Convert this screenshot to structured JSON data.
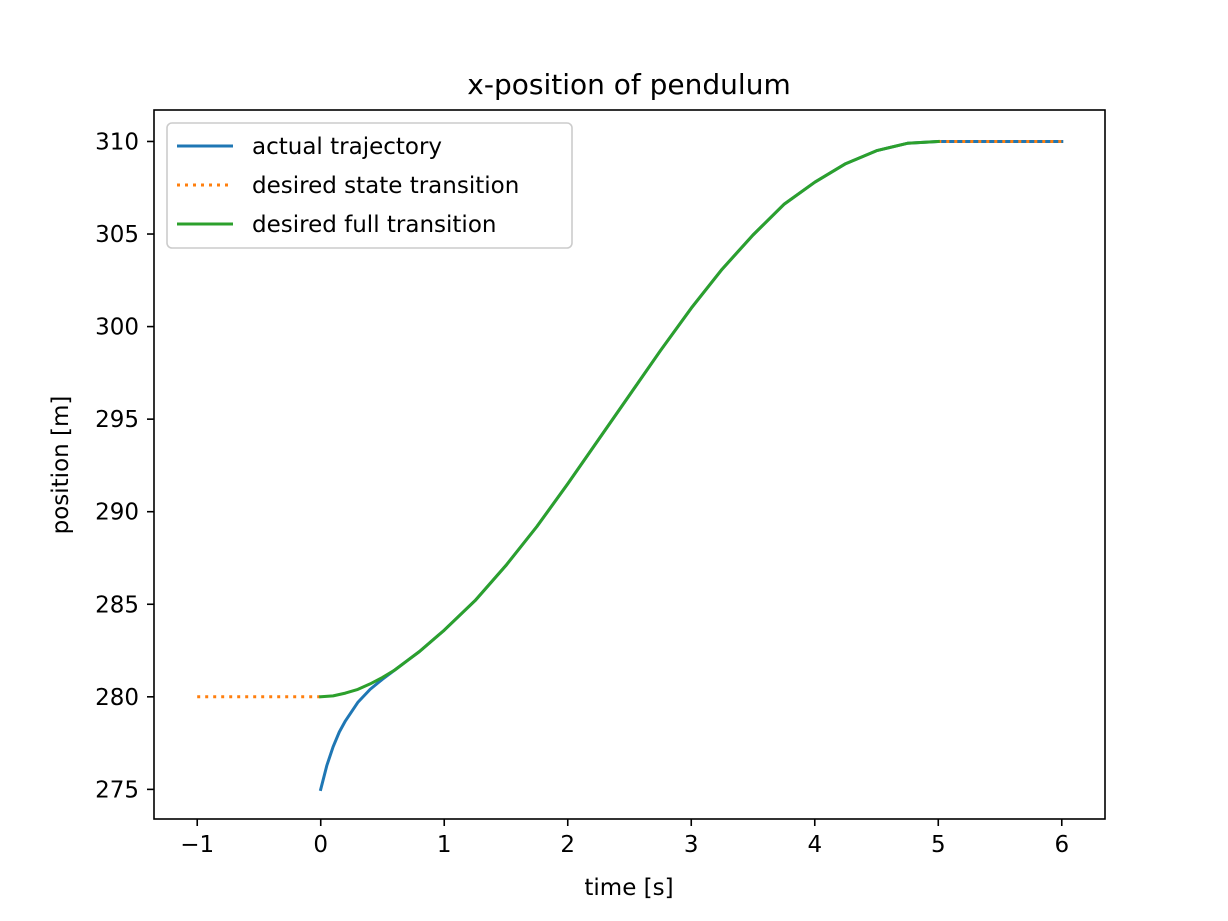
{
  "chart_data": {
    "type": "line",
    "title": "x-position of pendulum",
    "xlabel": "time [s]",
    "ylabel": "position [m]",
    "xlim": [
      -1.35,
      6.35
    ],
    "ylim": [
      273.4,
      311.7
    ],
    "xticks": [
      {
        "value": -1,
        "label": "−1"
      },
      {
        "value": 0,
        "label": "0"
      },
      {
        "value": 1,
        "label": "1"
      },
      {
        "value": 2,
        "label": "2"
      },
      {
        "value": 3,
        "label": "3"
      },
      {
        "value": 4,
        "label": "4"
      },
      {
        "value": 5,
        "label": "5"
      },
      {
        "value": 6,
        "label": "6"
      }
    ],
    "yticks": [
      {
        "value": 275,
        "label": "275"
      },
      {
        "value": 280,
        "label": "280"
      },
      {
        "value": 285,
        "label": "285"
      },
      {
        "value": 290,
        "label": "290"
      },
      {
        "value": 295,
        "label": "295"
      },
      {
        "value": 300,
        "label": "300"
      },
      {
        "value": 305,
        "label": "305"
      },
      {
        "value": 310,
        "label": "310"
      }
    ],
    "grid": false,
    "legend_position": "upper-left",
    "series": [
      {
        "name": "actual trajectory",
        "color": "#1f77b4",
        "style": "solid",
        "x": [
          0,
          0.05,
          0.1,
          0.15,
          0.2,
          0.3,
          0.4,
          0.5,
          0.6,
          0.7,
          0.8,
          1.0,
          1.25,
          1.5,
          1.75,
          2.0,
          2.25,
          2.5,
          2.75,
          3.0,
          3.25,
          3.5,
          3.75,
          4.0,
          4.25,
          4.5,
          4.75,
          5.0,
          5.5,
          6.0
        ],
        "y": [
          275.0,
          276.3,
          277.3,
          278.1,
          278.7,
          279.7,
          280.4,
          280.95,
          281.45,
          281.95,
          282.45,
          283.6,
          285.2,
          287.1,
          289.2,
          291.5,
          293.9,
          296.3,
          298.7,
          301.0,
          303.1,
          304.95,
          306.6,
          307.8,
          308.8,
          309.5,
          309.9,
          310.0,
          310.0,
          310.0
        ]
      },
      {
        "name": "desired state transition",
        "color": "#ff7f0e",
        "style": "dotted",
        "segments": [
          {
            "x": [
              -1,
              0
            ],
            "y": [
              280,
              280
            ]
          },
          {
            "x": [
              5,
              6
            ],
            "y": [
              310,
              310
            ]
          }
        ]
      },
      {
        "name": "desired full transition",
        "color": "#2ca02c",
        "style": "solid",
        "x": [
          0,
          0.1,
          0.2,
          0.3,
          0.4,
          0.5,
          0.6,
          0.7,
          0.8,
          1.0,
          1.25,
          1.5,
          1.75,
          2.0,
          2.25,
          2.5,
          2.75,
          3.0,
          3.25,
          3.5,
          3.75,
          4.0,
          4.25,
          4.5,
          4.75,
          5.0
        ],
        "y": [
          280.0,
          280.05,
          280.2,
          280.4,
          280.7,
          281.05,
          281.45,
          281.95,
          282.45,
          283.6,
          285.2,
          287.1,
          289.2,
          291.5,
          293.9,
          296.3,
          298.7,
          301.0,
          303.1,
          304.95,
          306.6,
          307.8,
          308.8,
          309.5,
          309.9,
          310.0
        ]
      }
    ]
  }
}
